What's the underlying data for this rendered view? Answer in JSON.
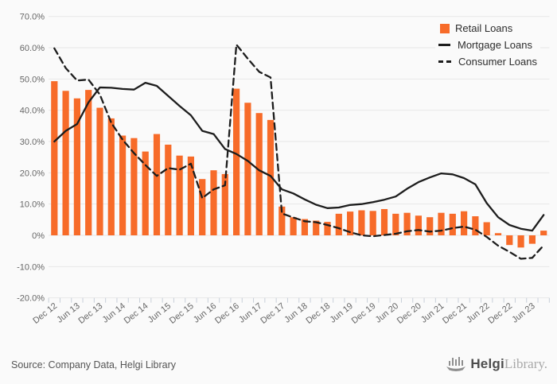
{
  "chart_data": {
    "type": "bar",
    "title": "",
    "categories": [
      "Dec 12",
      "Mar 13",
      "Jun 13",
      "Sep 13",
      "Dec 13",
      "Mar 14",
      "Jun 14",
      "Sep 14",
      "Dec 14",
      "Mar 15",
      "Jun 15",
      "Sep 15",
      "Dec 15",
      "Mar 16",
      "Jun 16",
      "Sep 16",
      "Dec 16",
      "Mar 17",
      "Jun 17",
      "Sep 17",
      "Dec 17",
      "Mar 18",
      "Jun 18",
      "Sep 18",
      "Dec 18",
      "Mar 19",
      "Jun 19",
      "Sep 19",
      "Dec 19",
      "Mar 20",
      "Jun 20",
      "Sep 20",
      "Dec 20",
      "Mar 21",
      "Jun 21",
      "Sep 21",
      "Dec 21",
      "Mar 22",
      "Jun 22",
      "Sep 22",
      "Dec 22",
      "Mar 23",
      "Jun 23",
      "Sep 23"
    ],
    "x_tick_labels": [
      "Dec 12",
      "Jun 13",
      "Dec 13",
      "Jun 14",
      "Dec 14",
      "Jun 15",
      "Dec 15",
      "Jun 16",
      "Dec 16",
      "Jun 17",
      "Dec 17",
      "Jun 18",
      "Dec 18",
      "Jun 19",
      "Dec 19",
      "Jun 20",
      "Dec 20",
      "Jun 21",
      "Dec 21",
      "Jun 22",
      "Dec 22",
      "Jun 23"
    ],
    "series": [
      {
        "name": "Retail Loans",
        "type": "bar",
        "color": "#f76b29",
        "values": [
          49.3,
          46.2,
          43.8,
          46.5,
          40.8,
          37.4,
          31.9,
          31.1,
          26.8,
          32.4,
          29.0,
          25.5,
          25.2,
          18.0,
          20.8,
          19.6,
          46.9,
          42.4,
          39.1,
          36.9,
          9.2,
          5.8,
          5.2,
          4.7,
          4.3,
          6.9,
          7.6,
          8.0,
          7.8,
          8.4,
          6.9,
          7.2,
          6.3,
          5.8,
          7.2,
          6.9,
          7.7,
          6.1,
          4.2,
          0.7,
          -3.1,
          -3.9,
          -2.7,
          1.5
        ]
      },
      {
        "name": "Mortgage Loans",
        "type": "line",
        "style": "solid",
        "color": "#1d1d1d",
        "values": [
          30.0,
          33.4,
          35.6,
          42.5,
          47.3,
          47.2,
          46.8,
          46.6,
          48.8,
          47.8,
          44.6,
          41.4,
          38.4,
          33.4,
          32.4,
          27.6,
          26.0,
          23.8,
          20.8,
          19.0,
          14.7,
          13.4,
          11.5,
          9.8,
          8.7,
          8.9,
          9.7,
          10.0,
          10.6,
          11.4,
          12.4,
          14.9,
          17.0,
          18.5,
          19.8,
          19.5,
          18.3,
          16.3,
          10.3,
          5.8,
          3.3,
          2.1,
          1.5,
          6.5
        ]
      },
      {
        "name": "Consumer Loans",
        "type": "line",
        "style": "dashed",
        "color": "#1d1d1d",
        "values": [
          59.8,
          53.5,
          49.5,
          49.8,
          45.0,
          36.0,
          30.6,
          26.3,
          22.5,
          19.0,
          21.5,
          21.0,
          22.9,
          11.9,
          14.7,
          16.0,
          61.0,
          56.5,
          52.3,
          50.5,
          7.0,
          5.7,
          4.5,
          4.2,
          3.3,
          2.3,
          1.0,
          0.0,
          -0.3,
          0.1,
          0.5,
          1.3,
          1.7,
          1.2,
          1.5,
          2.3,
          2.8,
          1.8,
          -0.5,
          -3.3,
          -5.3,
          -7.5,
          -7.2,
          -3.2
        ]
      }
    ],
    "ylim": [
      -20,
      70
    ],
    "y_ticks": [
      {
        "value": 70,
        "label": "70.0%"
      },
      {
        "value": 60,
        "label": "60.0%"
      },
      {
        "value": 50,
        "label": "50.0%"
      },
      {
        "value": 40,
        "label": "40.0%"
      },
      {
        "value": 30,
        "label": "30.0%"
      },
      {
        "value": 20,
        "label": "20.0%"
      },
      {
        "value": 10,
        "label": "10.0%"
      },
      {
        "value": 0,
        "label": "0%"
      },
      {
        "value": -10,
        "label": "-10.0%"
      },
      {
        "value": -20,
        "label": "-20.0%"
      }
    ],
    "grid": true,
    "grid_color": "#e7e7e7",
    "tick_color": "#c8cfd9",
    "axis_label_color": "#666666",
    "legend_position": "top-right"
  },
  "legend": {
    "items": [
      {
        "label": "Retail Loans",
        "swatch": "orange-square"
      },
      {
        "label": "Mortgage Loans",
        "swatch": "solid-line"
      },
      {
        "label": "Consumer Loans",
        "swatch": "dashed-line"
      }
    ]
  },
  "footer": {
    "source": "Source: Company Data, Helgi Library",
    "logo_bold": "Helgi",
    "logo_light": "Library."
  }
}
